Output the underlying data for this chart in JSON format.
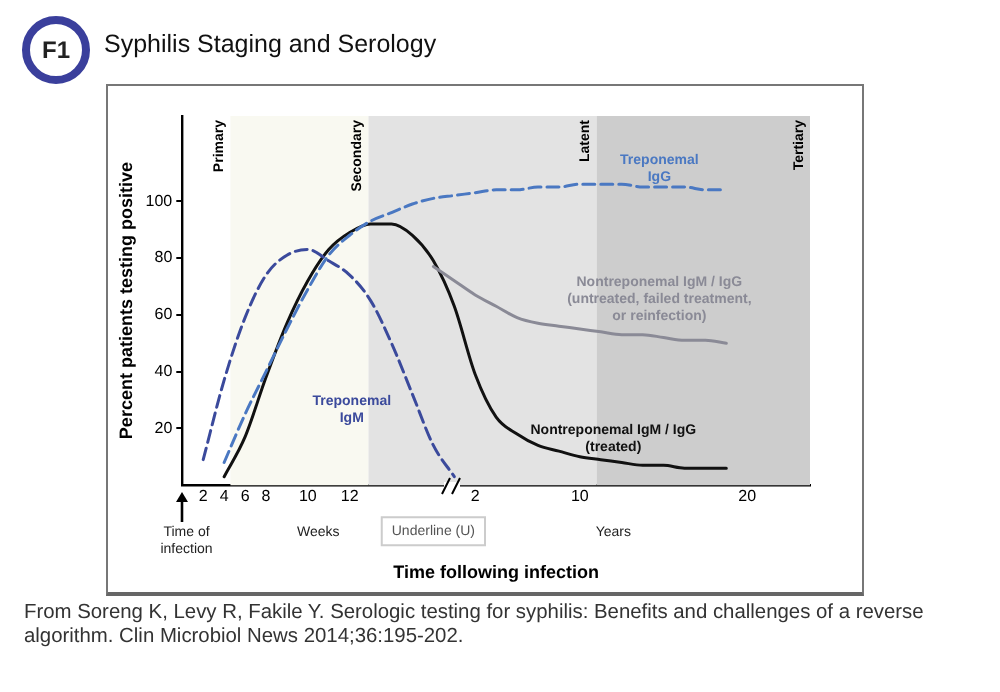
{
  "chart_data": {
    "type": "line",
    "title": "Syphilis Staging and Serology",
    "xlabel": "Time following infection",
    "ylabel": "Percent patients testing positive",
    "categories": [
      null,
      "2",
      "4",
      "6",
      "8",
      null,
      "10",
      null,
      "12",
      null,
      null,
      null,
      null,
      null,
      "2",
      null,
      null,
      null,
      null,
      "10",
      null,
      null,
      null,
      null,
      null,
      null,
      null,
      "20",
      null,
      null,
      null
    ],
    "ylim": [
      0,
      130
    ],
    "yticks": [
      20,
      40,
      60,
      80,
      100
    ],
    "grid": false,
    "legend": false,
    "marker": "none",
    "series": [
      {
        "name": "Treponemal IgG",
        "color": "#4a78c2",
        "line_style": "dashed",
        "values": [
          null,
          null,
          8,
          25,
          40,
          55,
          69,
          81,
          88,
          93,
          96,
          99,
          101,
          102,
          103,
          104,
          104,
          105,
          105,
          106,
          106,
          106,
          105,
          105,
          105,
          104,
          104,
          null,
          null,
          null,
          null
        ]
      },
      {
        "name": "Treponemal IgM",
        "color": "#3b4a9c",
        "line_style": "dashed",
        "values": [
          null,
          9,
          37,
          59,
          74,
          81,
          83,
          79,
          74,
          65,
          50,
          32,
          14,
          3,
          null,
          null,
          null,
          null,
          null,
          null,
          null,
          null,
          null,
          null,
          null,
          null,
          null,
          null,
          null,
          null,
          null
        ]
      },
      {
        "name": "Nontreponemal IgM / IgG (untreated, failed treatment, or reinfection)",
        "color": "#8a8a96",
        "line_style": "solid",
        "values": [
          null,
          null,
          null,
          null,
          null,
          null,
          null,
          null,
          null,
          null,
          null,
          null,
          77,
          72,
          67,
          63,
          59,
          57,
          56,
          55,
          54,
          53,
          53,
          52,
          51,
          51,
          50,
          null,
          null,
          null,
          null
        ]
      },
      {
        "name": "Nontreponemal IgM / IgG (treated)",
        "color": "#111111",
        "line_style": "solid",
        "values": [
          null,
          null,
          3,
          17,
          38,
          57,
          72,
          83,
          89,
          92,
          92,
          88,
          79,
          63,
          39,
          24,
          18,
          14,
          12,
          10,
          9,
          8,
          7,
          7,
          6,
          6,
          6,
          null,
          null,
          null,
          null
        ]
      }
    ],
    "annotations": [
      "F1",
      "Time of infection",
      "Weeks",
      "Years",
      "Underline (U)",
      "From Soreng K, Levy R, Fakile Y. Serologic testing for syphilis: Benefits and challenges of a reverse algorithm. Clin Microbiol News 2014;36:195-202.",
      "Primary",
      "Secondary",
      "Latent",
      "Tertiary"
    ]
  }
}
